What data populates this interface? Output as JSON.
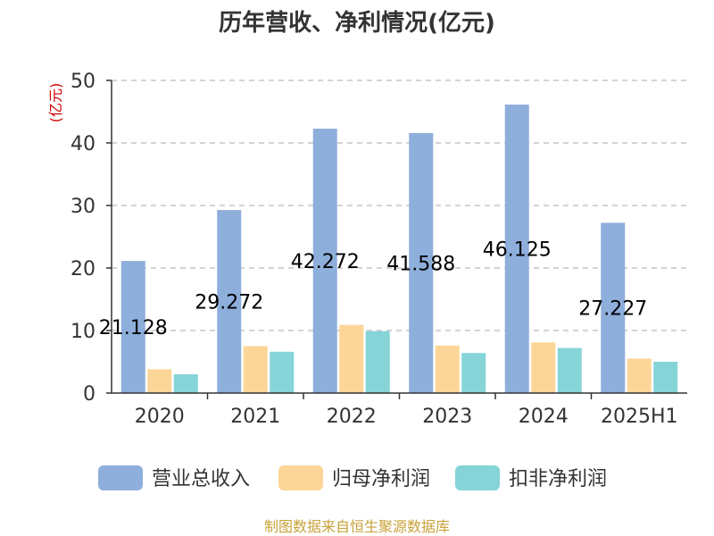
{
  "chart_data": {
    "type": "bar",
    "title": "历年营收、净利情况(亿元)",
    "ylabel": "(亿元)",
    "ylim": [
      0,
      50
    ],
    "yticks": [
      0,
      10,
      20,
      30,
      40,
      50
    ],
    "grid": true,
    "legend_position": "bottom",
    "categories": [
      "2020",
      "2021",
      "2022",
      "2023",
      "2024",
      "2025H1"
    ],
    "series": [
      {
        "name": "营业总收入",
        "color": "#8eaedb",
        "values": [
          21.128,
          29.272,
          42.272,
          41.588,
          46.125,
          27.227
        ],
        "labels": [
          "21.128",
          "29.272",
          "42.272",
          "41.588",
          "46.125",
          "27.227"
        ]
      },
      {
        "name": "归母净利润",
        "color": "#fcd698",
        "values": [
          3.8,
          7.5,
          10.9,
          7.6,
          8.1,
          5.5
        ]
      },
      {
        "name": "扣非净利润",
        "color": "#85d4d8",
        "values": [
          3.0,
          6.6,
          9.9,
          6.4,
          7.2,
          5.0
        ]
      }
    ]
  },
  "source": "制图数据来自恒生聚源数据库"
}
